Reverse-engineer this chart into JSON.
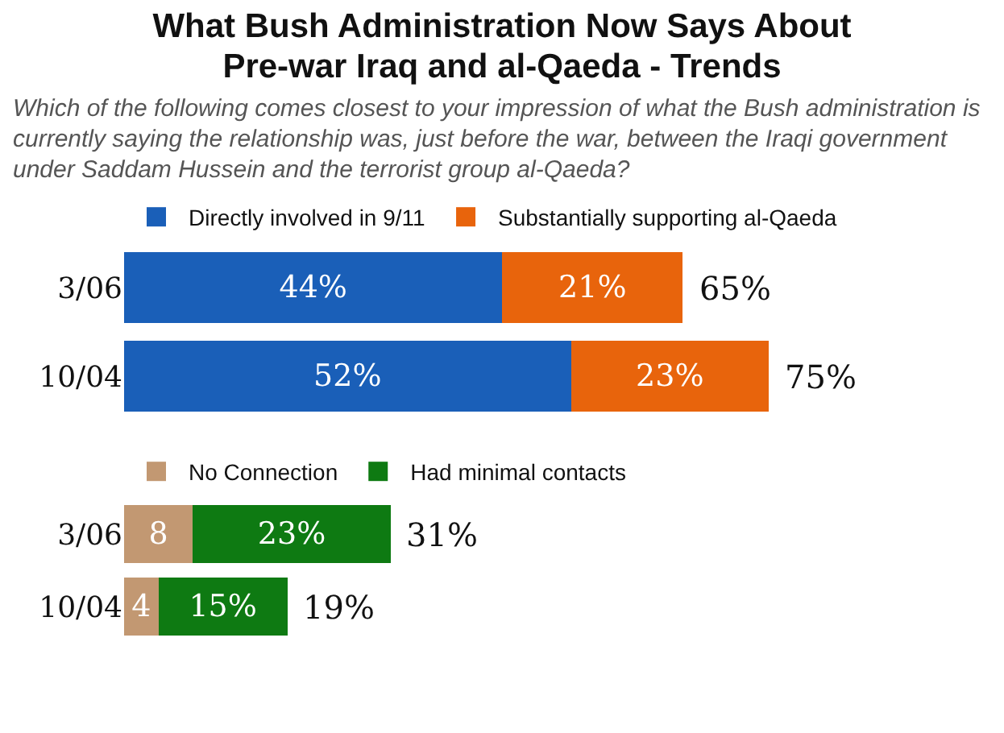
{
  "chart_data": [
    {
      "type": "bar",
      "title": "What Bush Administration Now Says About Pre-war Iraq and al-Qaeda - Trends",
      "subtitle": "Which of the following comes closest to your impression of what the Bush administration is currently saying the relationship was, just before the war, between the Iraqi government under Saddam Hussein and the terrorist group al-Qaeda?",
      "orientation": "horizontal",
      "stacked": true,
      "categories": [
        "3/06",
        "10/04"
      ],
      "series": [
        {
          "name": "Directly involved in 9/11",
          "color": "#1a5fb8",
          "values": [
            44,
            52
          ],
          "value_labels": [
            "44%",
            "52%"
          ]
        },
        {
          "name": "Substantially supporting al-Qaeda",
          "color": "#e8640c",
          "values": [
            21,
            23
          ],
          "value_labels": [
            "21%",
            "23%"
          ]
        }
      ],
      "totals": [
        "65%",
        "75%"
      ],
      "tick_labels": "y",
      "legend": "top"
    },
    {
      "type": "bar",
      "orientation": "horizontal",
      "stacked": true,
      "categories": [
        "3/06",
        "10/04"
      ],
      "series": [
        {
          "name": "No Connection",
          "color": "#c29872",
          "values": [
            8,
            4
          ],
          "value_labels": [
            "8",
            "4"
          ]
        },
        {
          "name": "Had minimal contacts",
          "color": "#0e7a12",
          "values": [
            23,
            15
          ],
          "value_labels": [
            "23%",
            "15%"
          ]
        }
      ],
      "totals": [
        "31%",
        "19%"
      ],
      "tick_labels": "y",
      "legend": "top"
    }
  ]
}
